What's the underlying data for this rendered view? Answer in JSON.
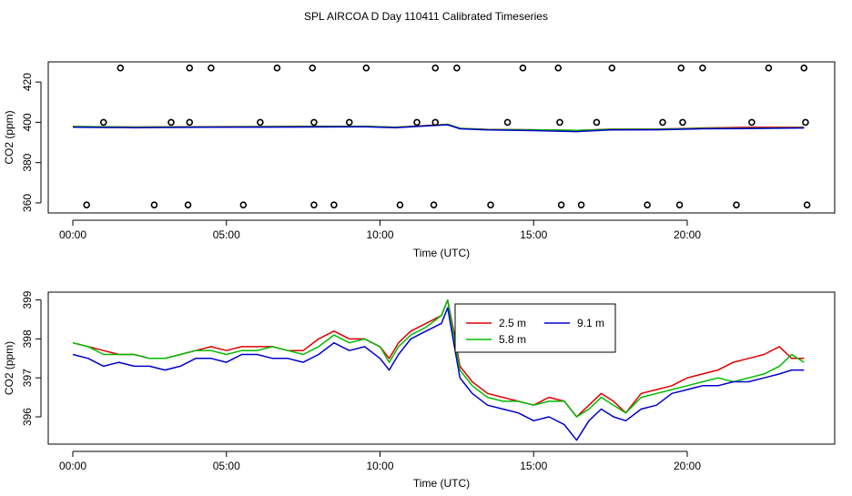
{
  "title": "SPL AIRCOA D  Day 110411  Calibrated Timeseries",
  "colors": {
    "s25": "#dd0000",
    "s58": "#00bb00",
    "s91": "#0000cc",
    "axis": "#000000"
  },
  "chart_data": [
    {
      "type": "scatter",
      "name": "top-panel",
      "xlabel": "Time (UTC)",
      "ylabel": "CO2 (ppm)",
      "xlim": [
        -0.8,
        24.8
      ],
      "ylim": [
        355,
        430
      ],
      "xticks": [
        0,
        5,
        10,
        15,
        20
      ],
      "xtick_labels": [
        "00:00",
        "05:00",
        "10:00",
        "15:00",
        "20:00"
      ],
      "yticks": [
        360,
        380,
        400,
        420
      ],
      "ytick_labels": [
        "360",
        "380",
        "400",
        "420"
      ],
      "markers": [
        {
          "x": 1.55,
          "y": 427
        },
        {
          "x": 3.8,
          "y": 427
        },
        {
          "x": 4.5,
          "y": 427
        },
        {
          "x": 6.65,
          "y": 427
        },
        {
          "x": 7.8,
          "y": 427
        },
        {
          "x": 9.55,
          "y": 427
        },
        {
          "x": 11.8,
          "y": 427
        },
        {
          "x": 12.5,
          "y": 427
        },
        {
          "x": 14.65,
          "y": 427
        },
        {
          "x": 15.8,
          "y": 427
        },
        {
          "x": 17.55,
          "y": 427
        },
        {
          "x": 19.8,
          "y": 427
        },
        {
          "x": 20.5,
          "y": 427
        },
        {
          "x": 22.65,
          "y": 427
        },
        {
          "x": 23.8,
          "y": 427
        },
        {
          "x": 1.0,
          "y": 400
        },
        {
          "x": 3.2,
          "y": 400
        },
        {
          "x": 3.8,
          "y": 400
        },
        {
          "x": 6.1,
          "y": 400
        },
        {
          "x": 7.85,
          "y": 400
        },
        {
          "x": 9.0,
          "y": 400
        },
        {
          "x": 11.2,
          "y": 400
        },
        {
          "x": 11.8,
          "y": 400
        },
        {
          "x": 14.15,
          "y": 400
        },
        {
          "x": 15.85,
          "y": 400
        },
        {
          "x": 17.05,
          "y": 400
        },
        {
          "x": 19.2,
          "y": 400
        },
        {
          "x": 19.85,
          "y": 400
        },
        {
          "x": 22.1,
          "y": 400
        },
        {
          "x": 23.85,
          "y": 400
        },
        {
          "x": 0.45,
          "y": 359
        },
        {
          "x": 2.65,
          "y": 359
        },
        {
          "x": 3.75,
          "y": 359
        },
        {
          "x": 5.55,
          "y": 359
        },
        {
          "x": 7.85,
          "y": 359
        },
        {
          "x": 8.5,
          "y": 359
        },
        {
          "x": 10.65,
          "y": 359
        },
        {
          "x": 11.75,
          "y": 359
        },
        {
          "x": 13.6,
          "y": 359
        },
        {
          "x": 15.9,
          "y": 359
        },
        {
          "x": 16.55,
          "y": 359
        },
        {
          "x": 18.7,
          "y": 359
        },
        {
          "x": 19.75,
          "y": 359
        },
        {
          "x": 21.6,
          "y": 359
        },
        {
          "x": 23.9,
          "y": 359
        }
      ],
      "series": [
        {
          "name": "2.5 m",
          "values": [
            [
              0.0,
              397.9
            ],
            [
              2.0,
              397.7
            ],
            [
              4.0,
              397.8
            ],
            [
              6.0,
              397.9
            ],
            [
              8.0,
              398.0
            ],
            [
              9.5,
              398.0
            ],
            [
              10.5,
              397.6
            ],
            [
              11.5,
              398.4
            ],
            [
              12.2,
              399.0
            ],
            [
              12.6,
              397.0
            ],
            [
              13.5,
              396.5
            ],
            [
              15.0,
              396.3
            ],
            [
              16.4,
              396.0
            ],
            [
              17.5,
              396.6
            ],
            [
              19.0,
              396.6
            ],
            [
              20.5,
              397.2
            ],
            [
              22.0,
              397.5
            ],
            [
              23.8,
              397.5
            ]
          ]
        },
        {
          "name": "5.8 m",
          "values": [
            [
              0.0,
              397.9
            ],
            [
              2.0,
              397.6
            ],
            [
              4.0,
              397.7
            ],
            [
              6.0,
              397.8
            ],
            [
              8.0,
              397.9
            ],
            [
              9.5,
              398.0
            ],
            [
              10.5,
              397.5
            ],
            [
              11.5,
              398.3
            ],
            [
              12.2,
              399.0
            ],
            [
              12.6,
              397.0
            ],
            [
              13.5,
              396.4
            ],
            [
              15.0,
              396.3
            ],
            [
              16.4,
              396.0
            ],
            [
              17.5,
              396.5
            ],
            [
              19.0,
              396.5
            ],
            [
              20.5,
              397.0
            ],
            [
              22.0,
              397.0
            ],
            [
              23.8,
              397.3
            ]
          ]
        },
        {
          "name": "9.1 m",
          "values": [
            [
              0.0,
              397.6
            ],
            [
              2.0,
              397.3
            ],
            [
              4.0,
              397.5
            ],
            [
              6.0,
              397.6
            ],
            [
              8.0,
              397.7
            ],
            [
              9.5,
              397.8
            ],
            [
              10.5,
              397.3
            ],
            [
              11.5,
              398.2
            ],
            [
              12.2,
              398.8
            ],
            [
              12.6,
              396.8
            ],
            [
              13.5,
              396.2
            ],
            [
              15.0,
              395.9
            ],
            [
              16.4,
              395.4
            ],
            [
              17.5,
              396.2
            ],
            [
              19.0,
              396.3
            ],
            [
              20.5,
              396.8
            ],
            [
              22.0,
              396.9
            ],
            [
              23.8,
              397.2
            ]
          ]
        }
      ]
    },
    {
      "type": "line",
      "name": "bottom-panel",
      "xlabel": "Time (UTC)",
      "ylabel": "CO2 (ppm)",
      "xlim": [
        -0.8,
        24.8
      ],
      "ylim": [
        395.3,
        399.2
      ],
      "xticks": [
        0,
        5,
        10,
        15,
        20
      ],
      "xtick_labels": [
        "00:00",
        "05:00",
        "10:00",
        "15:00",
        "20:00"
      ],
      "yticks": [
        396,
        397,
        398,
        399
      ],
      "ytick_labels": [
        "396",
        "397",
        "398",
        "399"
      ],
      "legend": {
        "position": "top-center",
        "entries": [
          "2.5 m",
          "5.8 m",
          "9.1 m"
        ]
      },
      "series": [
        {
          "name": "2.5 m",
          "color": "#dd0000",
          "values": [
            [
              0.0,
              397.9
            ],
            [
              0.5,
              397.8
            ],
            [
              1.0,
              397.7
            ],
            [
              1.5,
              397.6
            ],
            [
              2.0,
              397.6
            ],
            [
              2.5,
              397.5
            ],
            [
              3.0,
              397.5
            ],
            [
              3.5,
              397.6
            ],
            [
              4.0,
              397.7
            ],
            [
              4.5,
              397.8
            ],
            [
              5.0,
              397.7
            ],
            [
              5.5,
              397.8
            ],
            [
              6.0,
              397.8
            ],
            [
              6.5,
              397.8
            ],
            [
              7.0,
              397.7
            ],
            [
              7.5,
              397.7
            ],
            [
              8.0,
              398.0
            ],
            [
              8.5,
              398.2
            ],
            [
              9.0,
              398.0
            ],
            [
              9.5,
              398.0
            ],
            [
              10.0,
              397.8
            ],
            [
              10.3,
              397.5
            ],
            [
              10.6,
              397.9
            ],
            [
              11.0,
              398.2
            ],
            [
              11.5,
              398.4
            ],
            [
              12.0,
              398.6
            ],
            [
              12.2,
              399.0
            ],
            [
              12.4,
              398.2
            ],
            [
              12.6,
              397.3
            ],
            [
              13.0,
              396.9
            ],
            [
              13.5,
              396.6
            ],
            [
              14.0,
              396.5
            ],
            [
              14.5,
              396.4
            ],
            [
              15.0,
              396.3
            ],
            [
              15.5,
              396.5
            ],
            [
              16.0,
              396.4
            ],
            [
              16.4,
              396.0
            ],
            [
              16.8,
              396.3
            ],
            [
              17.2,
              396.6
            ],
            [
              17.6,
              396.4
            ],
            [
              18.0,
              396.1
            ],
            [
              18.5,
              396.6
            ],
            [
              19.0,
              396.7
            ],
            [
              19.5,
              396.8
            ],
            [
              20.0,
              397.0
            ],
            [
              20.5,
              397.1
            ],
            [
              21.0,
              397.2
            ],
            [
              21.5,
              397.4
            ],
            [
              22.0,
              397.5
            ],
            [
              22.5,
              397.6
            ],
            [
              23.0,
              397.8
            ],
            [
              23.4,
              397.5
            ],
            [
              23.8,
              397.5
            ]
          ]
        },
        {
          "name": "5.8 m",
          "color": "#00bb00",
          "values": [
            [
              0.0,
              397.9
            ],
            [
              0.5,
              397.8
            ],
            [
              1.0,
              397.6
            ],
            [
              1.5,
              397.6
            ],
            [
              2.0,
              397.6
            ],
            [
              2.5,
              397.5
            ],
            [
              3.0,
              397.5
            ],
            [
              3.5,
              397.6
            ],
            [
              4.0,
              397.7
            ],
            [
              4.5,
              397.7
            ],
            [
              5.0,
              397.6
            ],
            [
              5.5,
              397.7
            ],
            [
              6.0,
              397.7
            ],
            [
              6.5,
              397.8
            ],
            [
              7.0,
              397.7
            ],
            [
              7.5,
              397.6
            ],
            [
              8.0,
              397.8
            ],
            [
              8.5,
              398.1
            ],
            [
              9.0,
              397.9
            ],
            [
              9.5,
              398.0
            ],
            [
              10.0,
              397.8
            ],
            [
              10.3,
              397.4
            ],
            [
              10.6,
              397.8
            ],
            [
              11.0,
              398.1
            ],
            [
              11.5,
              398.3
            ],
            [
              12.0,
              398.6
            ],
            [
              12.2,
              399.0
            ],
            [
              12.4,
              398.1
            ],
            [
              12.6,
              397.2
            ],
            [
              13.0,
              396.8
            ],
            [
              13.5,
              396.5
            ],
            [
              14.0,
              396.4
            ],
            [
              14.5,
              396.4
            ],
            [
              15.0,
              396.3
            ],
            [
              15.5,
              396.4
            ],
            [
              16.0,
              396.4
            ],
            [
              16.4,
              396.0
            ],
            [
              16.8,
              396.2
            ],
            [
              17.2,
              396.5
            ],
            [
              17.6,
              396.3
            ],
            [
              18.0,
              396.1
            ],
            [
              18.5,
              396.5
            ],
            [
              19.0,
              396.6
            ],
            [
              19.5,
              396.7
            ],
            [
              20.0,
              396.8
            ],
            [
              20.5,
              396.9
            ],
            [
              21.0,
              397.0
            ],
            [
              21.5,
              396.9
            ],
            [
              22.0,
              397.0
            ],
            [
              22.5,
              397.1
            ],
            [
              23.0,
              397.3
            ],
            [
              23.4,
              397.6
            ],
            [
              23.8,
              397.4
            ]
          ]
        },
        {
          "name": "9.1 m",
          "color": "#0000cc",
          "values": [
            [
              0.0,
              397.6
            ],
            [
              0.5,
              397.5
            ],
            [
              1.0,
              397.3
            ],
            [
              1.5,
              397.4
            ],
            [
              2.0,
              397.3
            ],
            [
              2.5,
              397.3
            ],
            [
              3.0,
              397.2
            ],
            [
              3.5,
              397.3
            ],
            [
              4.0,
              397.5
            ],
            [
              4.5,
              397.5
            ],
            [
              5.0,
              397.4
            ],
            [
              5.5,
              397.6
            ],
            [
              6.0,
              397.6
            ],
            [
              6.5,
              397.5
            ],
            [
              7.0,
              397.5
            ],
            [
              7.5,
              397.4
            ],
            [
              8.0,
              397.6
            ],
            [
              8.5,
              397.9
            ],
            [
              9.0,
              397.7
            ],
            [
              9.5,
              397.8
            ],
            [
              10.0,
              397.5
            ],
            [
              10.3,
              397.2
            ],
            [
              10.6,
              397.6
            ],
            [
              11.0,
              398.0
            ],
            [
              11.5,
              398.2
            ],
            [
              12.0,
              398.4
            ],
            [
              12.2,
              398.8
            ],
            [
              12.4,
              397.9
            ],
            [
              12.6,
              397.0
            ],
            [
              13.0,
              396.6
            ],
            [
              13.5,
              396.3
            ],
            [
              14.0,
              396.2
            ],
            [
              14.5,
              396.1
            ],
            [
              15.0,
              395.9
            ],
            [
              15.5,
              396.0
            ],
            [
              16.0,
              395.8
            ],
            [
              16.4,
              395.4
            ],
            [
              16.8,
              395.9
            ],
            [
              17.2,
              396.2
            ],
            [
              17.6,
              396.0
            ],
            [
              18.0,
              395.9
            ],
            [
              18.5,
              396.2
            ],
            [
              19.0,
              396.3
            ],
            [
              19.5,
              396.6
            ],
            [
              20.0,
              396.7
            ],
            [
              20.5,
              396.8
            ],
            [
              21.0,
              396.8
            ],
            [
              21.5,
              396.9
            ],
            [
              22.0,
              396.9
            ],
            [
              22.5,
              397.0
            ],
            [
              23.0,
              397.1
            ],
            [
              23.4,
              397.2
            ],
            [
              23.8,
              397.2
            ]
          ]
        }
      ]
    }
  ]
}
